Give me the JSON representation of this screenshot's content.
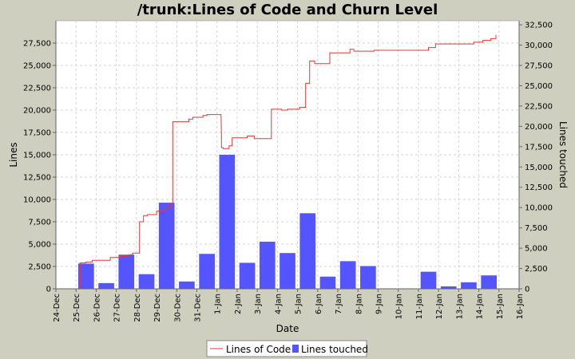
{
  "chart_data": {
    "type": "bar+line",
    "title": "/trunk:Lines of Code and Churn Level",
    "xlabel": "Date",
    "ylabel_left": "Lines",
    "ylabel_right": "Lines touched",
    "x_ticks": [
      "24-Dec",
      "25-Dec",
      "26-Dec",
      "27-Dec",
      "28-Dec",
      "29-Dec",
      "30-Dec",
      "31-Dec",
      "1-Jan",
      "2-Jan",
      "3-Jan",
      "4-Jan",
      "5-Jan",
      "6-Jan",
      "7-Jan",
      "8-Jan",
      "9-Jan",
      "10-Jan",
      "11-Jan",
      "12-Jan",
      "13-Jan",
      "14-Jan",
      "15-Jan",
      "16-Jan"
    ],
    "x_range": [
      0,
      23
    ],
    "y_left_ticks": [
      "0",
      "2,500",
      "5,000",
      "7,500",
      "10,000",
      "12,500",
      "15,000",
      "17,500",
      "20,000",
      "22,500",
      "25,000",
      "27,500"
    ],
    "y_left_range": [
      0,
      30000
    ],
    "y_right_ticks": [
      "0",
      "2,500",
      "5,000",
      "7,500",
      "10,000",
      "12,500",
      "15,000",
      "17,500",
      "20,000",
      "22,500",
      "25,000",
      "27,500",
      "30,000",
      "32,500"
    ],
    "y_right_range": [
      0,
      33000
    ],
    "grid": true,
    "legend": {
      "placement": "bottom",
      "entries": [
        "Lines of Code",
        "Lines touched"
      ]
    },
    "colors": {
      "line": "#e03a3a",
      "bars": "#5555ff",
      "plot_bg": "#ffffff",
      "grid": "#d4d4d4",
      "background": "#cfcfc0"
    },
    "bars": {
      "name": "Lines touched",
      "axis": "right",
      "x": [
        1.5,
        2.5,
        3.5,
        4.5,
        5.5,
        6.5,
        7.5,
        8.5,
        9.5,
        10.5,
        11.5,
        12.5,
        13.5,
        14.5,
        15.5,
        18.5,
        19.5,
        20.5,
        21.5
      ],
      "values": [
        3100,
        700,
        4200,
        1800,
        10600,
        900,
        4300,
        16500,
        3200,
        5800,
        4400,
        9300,
        1500,
        3400,
        2800,
        2100,
        300,
        800,
        1650
      ]
    },
    "line": {
      "name": "Lines of Code",
      "axis": "left",
      "x": [
        1.2,
        1.2,
        1.5,
        1.5,
        1.8,
        1.8,
        2.7,
        2.7,
        3.2,
        3.2,
        3.65,
        3.65,
        3.8,
        3.8,
        4.15,
        4.15,
        4.35,
        4.35,
        4.55,
        4.55,
        5.0,
        5.0,
        5.4,
        5.4,
        5.65,
        5.65,
        5.8,
        5.8,
        6.6,
        6.6,
        6.8,
        6.8,
        7.3,
        7.3,
        7.5,
        7.5,
        8.2,
        8.22,
        8.22,
        8.3,
        8.3,
        8.6,
        8.6,
        8.75,
        8.75,
        9.5,
        9.5,
        9.85,
        9.85,
        10.7,
        10.7,
        11.2,
        11.2,
        11.5,
        11.5,
        12.1,
        12.1,
        12.4,
        12.4,
        12.6,
        12.6,
        12.85,
        12.85,
        13.6,
        13.6,
        14.6,
        14.6,
        14.8,
        14.8,
        15.8,
        15.8,
        18.5,
        18.5,
        18.85,
        18.85,
        20.75,
        20.75,
        21.2,
        21.2,
        21.6,
        21.6,
        21.85,
        21.85
      ],
      "values": [
        0,
        2900,
        2900,
        3000,
        3000,
        3200,
        3200,
        3500,
        3500,
        3700,
        3700,
        3800,
        3800,
        4000,
        4000,
        7500,
        7500,
        8200,
        8200,
        8300,
        8300,
        8700,
        8700,
        9000,
        9000,
        9500,
        9500,
        18700,
        18700,
        19000,
        19000,
        19200,
        19200,
        19400,
        19400,
        19500,
        19500,
        17000,
        15800,
        15800,
        15700,
        15700,
        16000,
        16000,
        16900,
        16900,
        17100,
        17100,
        16800,
        16800,
        20100,
        20100,
        20000,
        20000,
        20100,
        20100,
        20300,
        20300,
        23000,
        23000,
        25500,
        25500,
        25200,
        25200,
        26400,
        26400,
        26800,
        26800,
        26600,
        26600,
        26700,
        26700,
        27000,
        27000,
        27400,
        27400,
        27600,
        27600,
        27800,
        27800,
        28000,
        28000,
        28400
      ]
    }
  }
}
